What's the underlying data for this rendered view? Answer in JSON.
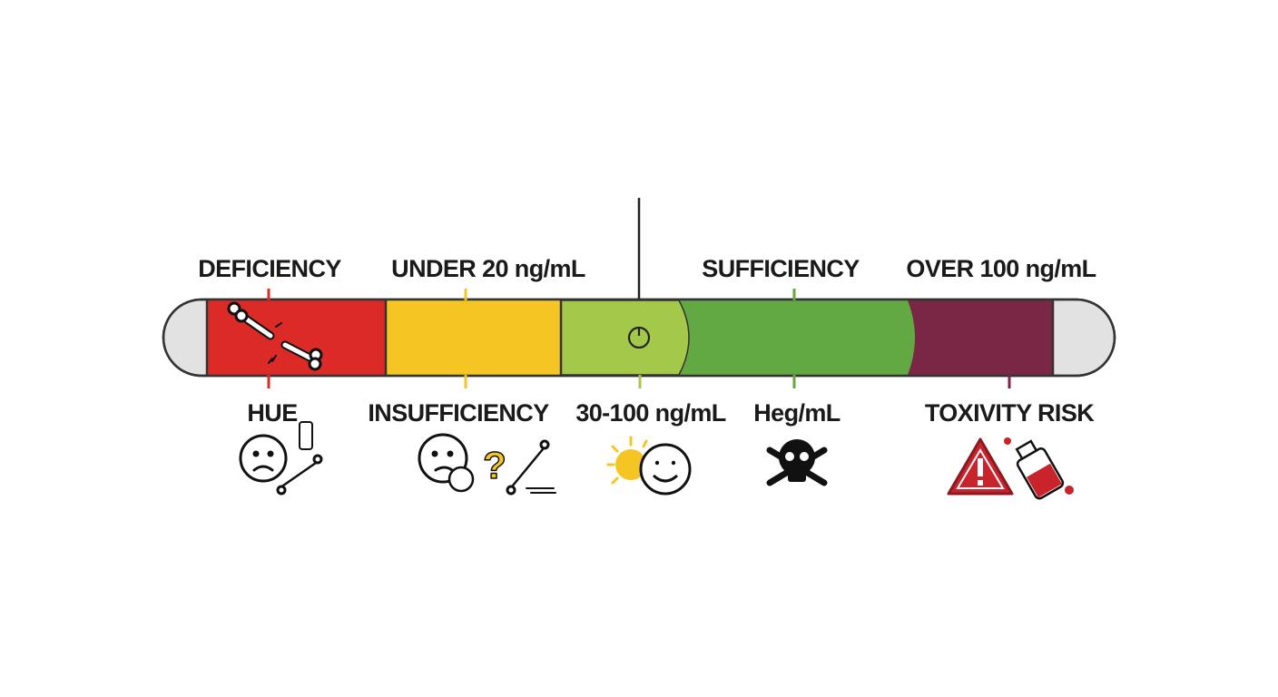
{
  "top_labels": [
    "DEFICIENCY",
    "UNDER 20 ng/mL",
    "SUFFICIENCY",
    "OVER 100 ng/mL"
  ],
  "bottom_labels": [
    "HUE",
    "INSUFFICIENCY",
    "30-100 ng/mL",
    "Heg/mL",
    "TOXIVITY RISK"
  ]
}
